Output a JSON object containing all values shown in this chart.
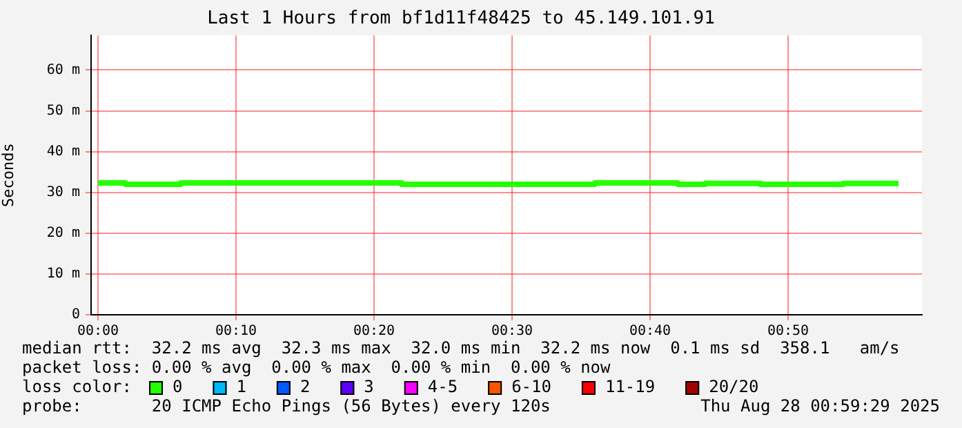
{
  "chart_data": {
    "type": "step",
    "title": "Last 1 Hours from bf1d11f48425 to 45.149.101.91",
    "ylabel": "Seconds",
    "legend_title": "loss color:",
    "legend": "bottom",
    "grid": true,
    "x": [
      0,
      2,
      4,
      6,
      8,
      10,
      12,
      14,
      16,
      18,
      20,
      22,
      24,
      26,
      28,
      30,
      32,
      34,
      36,
      38,
      40,
      42,
      44,
      46,
      48,
      50,
      52,
      54,
      56,
      58
    ],
    "xlim": [
      -0.5,
      59.7
    ],
    "xticks": [
      {
        "value": 0,
        "label": "00:00"
      },
      {
        "value": 10,
        "label": "00:10"
      },
      {
        "value": 20,
        "label": "00:20"
      },
      {
        "value": 30,
        "label": "00:30"
      },
      {
        "value": 40,
        "label": "00:40"
      },
      {
        "value": 50,
        "label": "00:50"
      }
    ],
    "ylim": [
      0,
      68.5
    ],
    "yticks": [
      0,
      {
        "value": 10,
        "label": "10 m"
      },
      {
        "value": 20,
        "label": "20 m"
      },
      {
        "value": 30,
        "label": "30 m"
      },
      {
        "value": 40,
        "label": "40 m"
      },
      {
        "value": 50,
        "label": "50 m"
      },
      {
        "value": 60,
        "label": "60 m"
      }
    ],
    "series": [
      {
        "name": "0",
        "color": "#26ff00",
        "values": [
          32.3,
          32.3,
          32.0,
          32.0,
          32.3,
          32.3,
          32.3,
          32.3,
          32.3,
          32.3,
          32.3,
          32.3,
          32.0,
          32.0,
          32.0,
          32.0,
          32.0,
          32.0,
          32.0,
          32.3,
          32.3,
          32.3,
          32.0,
          32.2,
          32.2,
          32.0,
          32.0,
          32.0,
          32.2,
          32.2
        ]
      },
      {
        "name": "1",
        "color": "#00b8ff",
        "values": [
          null,
          null,
          null,
          null,
          null,
          null,
          null,
          null,
          null,
          null,
          null,
          null,
          null,
          null,
          null,
          null,
          null,
          null,
          null,
          null,
          null,
          null,
          null,
          null,
          null,
          null,
          null,
          null,
          null,
          null
        ]
      },
      {
        "name": "2",
        "color": "#0059ff",
        "values": [
          null,
          null,
          null,
          null,
          null,
          null,
          null,
          null,
          null,
          null,
          null,
          null,
          null,
          null,
          null,
          null,
          null,
          null,
          null,
          null,
          null,
          null,
          null,
          null,
          null,
          null,
          null,
          null,
          null,
          null
        ]
      },
      {
        "name": "3",
        "color": "#5e00ff",
        "values": [
          null,
          null,
          null,
          null,
          null,
          null,
          null,
          null,
          null,
          null,
          null,
          null,
          null,
          null,
          null,
          null,
          null,
          null,
          null,
          null,
          null,
          null,
          null,
          null,
          null,
          null,
          null,
          null,
          null,
          null
        ]
      },
      {
        "name": "4-5",
        "color": "#ff00ff",
        "values": [
          null,
          null,
          null,
          null,
          null,
          null,
          null,
          null,
          null,
          null,
          null,
          null,
          null,
          null,
          null,
          null,
          null,
          null,
          null,
          null,
          null,
          null,
          null,
          null,
          null,
          null,
          null,
          null,
          null,
          null
        ]
      },
      {
        "name": "6-10",
        "color": "#ff5500",
        "values": [
          null,
          null,
          null,
          null,
          null,
          null,
          null,
          null,
          null,
          null,
          null,
          null,
          null,
          null,
          null,
          null,
          null,
          null,
          null,
          null,
          null,
          null,
          null,
          null,
          null,
          null,
          null,
          null,
          null,
          null
        ]
      },
      {
        "name": "11-19",
        "color": "#ff0000",
        "values": [
          null,
          null,
          null,
          null,
          null,
          null,
          null,
          null,
          null,
          null,
          null,
          null,
          null,
          null,
          null,
          null,
          null,
          null,
          null,
          null,
          null,
          null,
          null,
          null,
          null,
          null,
          null,
          null,
          null,
          null
        ]
      },
      {
        "name": "20/20",
        "color": "#a10000",
        "values": [
          null,
          null,
          null,
          null,
          null,
          null,
          null,
          null,
          null,
          null,
          null,
          null,
          null,
          null,
          null,
          null,
          null,
          null,
          null,
          null,
          null,
          null,
          null,
          null,
          null,
          null,
          null,
          null,
          null,
          null
        ]
      }
    ],
    "annotations": [
      "median rtt:  32.2 ms avg  32.3 ms max  32.0 ms min  32.2 ms now  0.1 ms sd  358.1   am/s",
      "packet loss: 0.00 % avg  0.00 % max  0.00 % min  0.00 % now",
      "probe:       20 ICMP Echo Pings (56 Bytes) every 120s",
      "Thu Aug 28 00:59:29 2025"
    ]
  }
}
